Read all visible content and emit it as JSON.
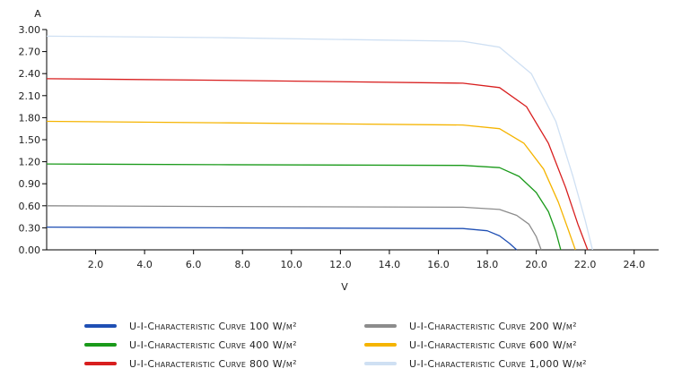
{
  "chart_data": {
    "type": "line",
    "title": "",
    "xlabel": "V",
    "ylabel": "A",
    "xlim": [
      0,
      25
    ],
    "ylim": [
      0,
      3.0
    ],
    "x_ticks": [
      "2.0",
      "4.0",
      "6.0",
      "8.0",
      "10.0",
      "12.0",
      "14.0",
      "16.0",
      "18.0",
      "20.0",
      "22.0",
      "24.0"
    ],
    "y_ticks": [
      "0.00",
      "0.30",
      "0.60",
      "0.90",
      "1.20",
      "1.50",
      "1.80",
      "2.10",
      "2.40",
      "2.70",
      "3.00"
    ],
    "grid": false,
    "legend_position": "bottom",
    "series": [
      {
        "name": "U-I-Characteristic Curve 100 W/m²",
        "color": "#1f4fb4",
        "x": [
          0.0,
          7.0,
          17.0,
          18.0,
          18.5,
          18.9,
          19.2
        ],
        "y": [
          0.31,
          0.3,
          0.29,
          0.26,
          0.19,
          0.09,
          0.0
        ]
      },
      {
        "name": "U-I-Characteristic Curve 200 W/m²",
        "color": "#8c8c8c",
        "x": [
          0.0,
          7.0,
          17.0,
          18.5,
          19.2,
          19.7,
          20.0,
          20.2
        ],
        "y": [
          0.6,
          0.59,
          0.58,
          0.55,
          0.47,
          0.35,
          0.18,
          0.0
        ]
      },
      {
        "name": "U-I-Characteristic Curve 400 W/m²",
        "color": "#1a9a1a",
        "x": [
          0.0,
          7.0,
          17.0,
          18.5,
          19.3,
          20.0,
          20.5,
          20.8,
          21.0
        ],
        "y": [
          1.17,
          1.16,
          1.15,
          1.12,
          1.0,
          0.78,
          0.52,
          0.25,
          0.0
        ]
      },
      {
        "name": "U-I-Characteristic Curve 600 W/m²",
        "color": "#f5b400",
        "x": [
          0.0,
          7.0,
          17.0,
          18.5,
          19.5,
          20.3,
          20.9,
          21.3,
          21.6
        ],
        "y": [
          1.75,
          1.73,
          1.7,
          1.65,
          1.45,
          1.1,
          0.65,
          0.28,
          0.0
        ]
      },
      {
        "name": "U-I-Characteristic Curve 800 W/m²",
        "color": "#d81e1e",
        "x": [
          0.0,
          7.0,
          17.0,
          18.5,
          19.6,
          20.5,
          21.2,
          21.7,
          22.1
        ],
        "y": [
          2.33,
          2.31,
          2.27,
          2.21,
          1.95,
          1.45,
          0.85,
          0.35,
          0.0
        ]
      },
      {
        "name": "U-I-Characteristic Curve 1,000 W/m²",
        "color": "#cfe0f3",
        "x": [
          0.0,
          7.0,
          17.0,
          18.5,
          19.8,
          20.8,
          21.5,
          22.0,
          22.3
        ],
        "y": [
          2.91,
          2.89,
          2.84,
          2.76,
          2.4,
          1.75,
          1.0,
          0.4,
          0.0
        ]
      }
    ]
  }
}
